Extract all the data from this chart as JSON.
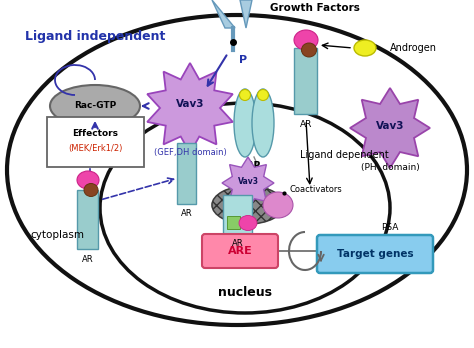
{
  "bg_color": "#ffffff",
  "title_text": "Ligand independent",
  "ligand_dep_text": "Ligand dependent",
  "nucleus_text": "nucleus",
  "cytoplasm_text": "cytoplasm",
  "growth_factors_text": "Growth Factors",
  "androgen_text": "Androgen",
  "psa_text": "PSA",
  "coactivators_text": "Coactivators",
  "gef_dh_text": "(GEF,DH domain)",
  "ph_domain_text": "(PH  domain)"
}
